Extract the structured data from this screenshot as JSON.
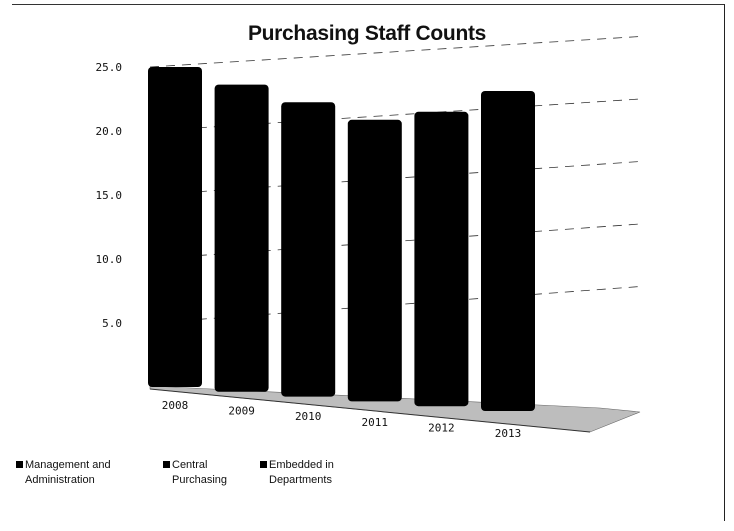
{
  "chart_data": {
    "type": "bar",
    "title": "Purchasing Staff Counts",
    "categories": [
      "2008",
      "2009",
      "2010",
      "2011",
      "2012",
      "2013"
    ],
    "series": [
      {
        "name": "Management and Administration",
        "values": [
          0,
          0,
          0,
          0,
          0,
          0
        ],
        "color": "#000000"
      },
      {
        "name": "Central Purchasing",
        "values": [
          0,
          0,
          0,
          0,
          0,
          0
        ],
        "color": "#000000"
      },
      {
        "name": "Embedded in Departments",
        "values": [
          25,
          24,
          23,
          22,
          23,
          25
        ],
        "color": "#000000"
      }
    ],
    "y_ticks": [
      "",
      "5.0",
      "10.0",
      "15.0",
      "20.0",
      "25.0"
    ],
    "ylim": [
      0,
      25
    ],
    "grid": true,
    "legend_position": "bottom-left",
    "xlabel": "",
    "ylabel": ""
  }
}
